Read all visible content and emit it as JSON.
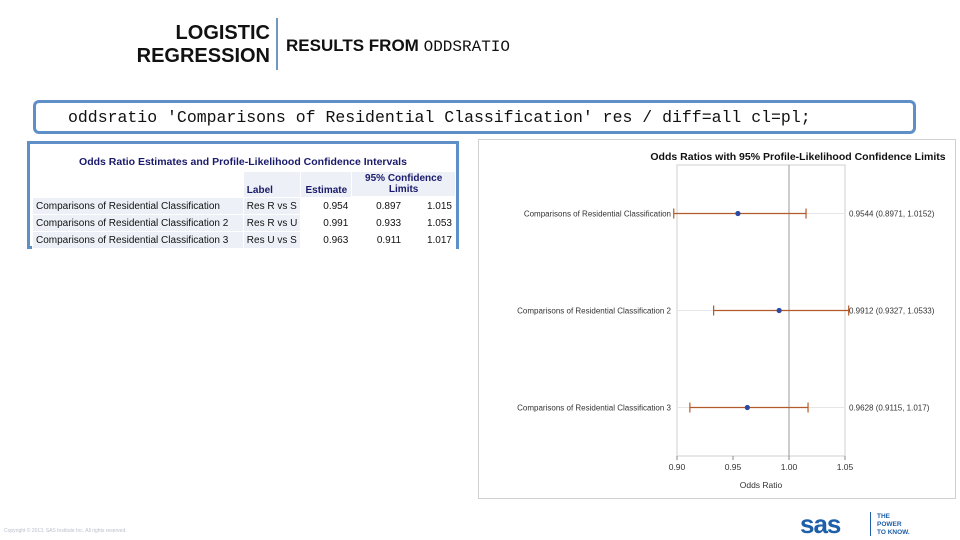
{
  "header": {
    "title_line1": "LOGISTIC",
    "title_line2": "REGRESSION",
    "subtitle_prefix": "RESULTS FROM",
    "subtitle_code": "ODDSRATIO"
  },
  "code": "oddsratio 'Comparisons of Residential Classification' res / diff=all cl=pl;",
  "table": {
    "title": "Odds Ratio Estimates and Profile-Likelihood Confidence Intervals",
    "col_label": "Label",
    "col_estimate": "Estimate",
    "col_ci_line1": "95% Confidence",
    "col_ci_line2": "Limits",
    "rows": [
      {
        "name": "Comparisons of Residential Classification",
        "label": "Res R vs S",
        "estimate": "0.954",
        "lower": "0.897",
        "upper": "1.015"
      },
      {
        "name": "Comparisons of Residential Classification 2",
        "label": "Res R vs U",
        "estimate": "0.991",
        "lower": "0.933",
        "upper": "1.053"
      },
      {
        "name": "Comparisons of Residential Classification 3",
        "label": "Res U vs S",
        "estimate": "0.963",
        "lower": "0.911",
        "upper": "1.017"
      }
    ]
  },
  "chart_data": {
    "type": "scatter",
    "title": "Odds Ratios with 95% Profile-Likelihood Confidence Limits",
    "xlabel": "Odds Ratio",
    "ylabel": "",
    "xlim": [
      0.9,
      1.05
    ],
    "xticks": [
      "0.90",
      "0.95",
      "1.00",
      "1.05"
    ],
    "reference_line": 1.0,
    "grid": true,
    "points": [
      {
        "label": "Comparisons of Residential Classification",
        "estimate": 0.9544,
        "lower": 0.8971,
        "upper": 1.0152,
        "annotation": "0.9544 (0.8971, 1.0152)"
      },
      {
        "label": "Comparisons of Residential Classification 2",
        "estimate": 0.9912,
        "lower": 0.9327,
        "upper": 1.0533,
        "annotation": "0.9912 (0.9327, 1.0533)"
      },
      {
        "label": "Comparisons of Residential Classification 3",
        "estimate": 0.9628,
        "lower": 0.9115,
        "upper": 1.017,
        "annotation": "0.9628 (0.9115, 1.017)"
      }
    ],
    "colors": {
      "point": "#2b4aa6",
      "interval": "#b35a2a",
      "axis": "#888888"
    }
  },
  "footer": {
    "copyright": "Copyright © 2013, SAS Institute Inc. All rights reserved.",
    "brand": "sas",
    "tagline": [
      "THE",
      "POWER",
      "TO KNOW."
    ],
    "brand_color": "#1d5fa8"
  }
}
